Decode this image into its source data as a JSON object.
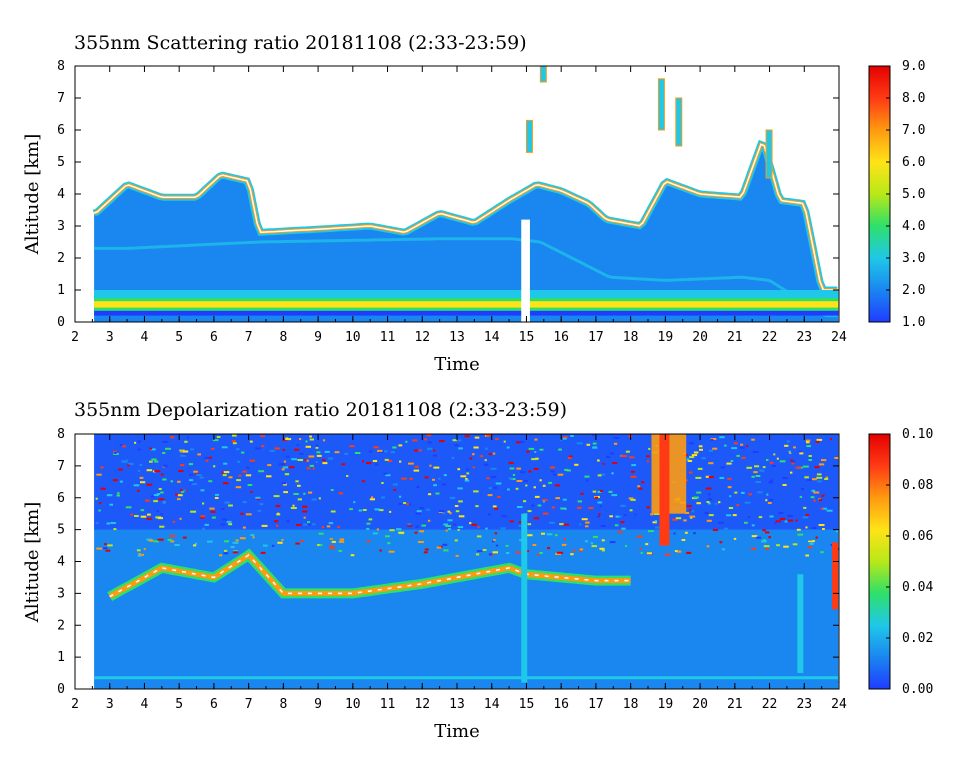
{
  "chart_data": [
    {
      "type": "heatmap",
      "title": "355nm Scattering ratio  20181108 (2:33-23:59)",
      "xlabel": "Time",
      "ylabel": "Altitude [km]",
      "xlim": [
        2,
        24
      ],
      "ylim": [
        0,
        8
      ],
      "x_ticks": [
        "2",
        "3",
        "4",
        "5",
        "6",
        "7",
        "8",
        "9",
        "10",
        "11",
        "12",
        "13",
        "14",
        "15",
        "16",
        "17",
        "18",
        "19",
        "20",
        "21",
        "22",
        "23",
        "24"
      ],
      "y_ticks": [
        "0",
        "1",
        "2",
        "3",
        "4",
        "5",
        "6",
        "7",
        "8"
      ],
      "data_start": 2.55,
      "data_end": 23.98,
      "colorbar": {
        "min": 1.0,
        "max": 9.0,
        "labels": [
          "1.0",
          "2.0",
          "3.0",
          "4.0",
          "5.0",
          "6.0",
          "7.0",
          "8.0",
          "9.0"
        ],
        "stops": [
          "#1f3cff",
          "#1a86f0",
          "#1fc8e8",
          "#2ee06a",
          "#b8e818",
          "#ffe318",
          "#ff9a10",
          "#ff3a14",
          "#e40000"
        ]
      },
      "cloud_top_km": [
        [
          2.6,
          3.4
        ],
        [
          3.5,
          4.3
        ],
        [
          4.5,
          3.9
        ],
        [
          5.5,
          3.9
        ],
        [
          6.2,
          4.6
        ],
        [
          7.0,
          4.4
        ],
        [
          7.3,
          2.8
        ],
        [
          9.0,
          2.9
        ],
        [
          10.5,
          3.0
        ],
        [
          11.5,
          2.8
        ],
        [
          12.5,
          3.4
        ],
        [
          13.5,
          3.1
        ],
        [
          14.5,
          3.8
        ],
        [
          15.3,
          4.3
        ],
        [
          16.0,
          4.1
        ],
        [
          16.8,
          3.7
        ],
        [
          17.3,
          3.2
        ],
        [
          18.3,
          3.0
        ],
        [
          19.0,
          4.4
        ],
        [
          20.0,
          4.0
        ],
        [
          21.2,
          3.9
        ],
        [
          21.8,
          5.7
        ],
        [
          22.3,
          3.8
        ],
        [
          23.0,
          3.7
        ],
        [
          23.5,
          1.0
        ]
      ],
      "cloud_base_km": [
        [
          2.6,
          2.3
        ],
        [
          3.5,
          2.3
        ],
        [
          7.3,
          2.5
        ],
        [
          12.5,
          2.6
        ],
        [
          14.6,
          2.6
        ],
        [
          15.4,
          2.5
        ],
        [
          17.4,
          1.4
        ],
        [
          19.0,
          1.3
        ],
        [
          21.2,
          1.4
        ],
        [
          22.0,
          1.3
        ],
        [
          23.6,
          0.2
        ]
      ],
      "boundary_layer_km": [
        0.3,
        0.75
      ]
    },
    {
      "type": "heatmap",
      "title": "355nm Depolarization ratio  20181108 (2:33-23:59)",
      "xlabel": "Time",
      "ylabel": "Altitude [km]",
      "xlim": [
        2,
        24
      ],
      "ylim": [
        0,
        8
      ],
      "x_ticks": [
        "2",
        "3",
        "4",
        "5",
        "6",
        "7",
        "8",
        "9",
        "10",
        "11",
        "12",
        "13",
        "14",
        "15",
        "16",
        "17",
        "18",
        "19",
        "20",
        "21",
        "22",
        "23",
        "24"
      ],
      "y_ticks": [
        "0",
        "1",
        "2",
        "3",
        "4",
        "5",
        "6",
        "7",
        "8"
      ],
      "data_start": 2.55,
      "data_end": 23.98,
      "colorbar": {
        "min": 0.0,
        "max": 0.1,
        "labels": [
          "0.00",
          "0.02",
          "0.04",
          "0.06",
          "0.08",
          "0.10"
        ],
        "stops": [
          "#1f3cff",
          "#1a86f0",
          "#1fc8e8",
          "#2ee06a",
          "#b8e818",
          "#ffe318",
          "#ff9a10",
          "#ff3a14",
          "#e40000"
        ]
      },
      "cloud_layer_km": [
        [
          3.0,
          2.9
        ],
        [
          4.5,
          3.8
        ],
        [
          6.0,
          3.5
        ],
        [
          7.0,
          4.2
        ],
        [
          8.0,
          3.0
        ],
        [
          10.0,
          3.0
        ],
        [
          12.0,
          3.3
        ],
        [
          13.5,
          3.6
        ],
        [
          14.5,
          3.8
        ],
        [
          15.0,
          3.6
        ],
        [
          17.0,
          3.4
        ],
        [
          18.0,
          3.4
        ]
      ],
      "high_depol_region": {
        "x_start": 18.6,
        "x_end": 19.6,
        "top_km": 8.0,
        "bottom_km": 5.5
      }
    }
  ]
}
